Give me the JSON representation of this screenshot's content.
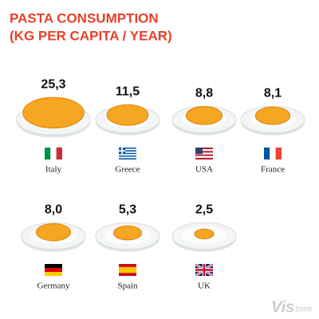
{
  "chart_data": {
    "type": "pictogram",
    "title": "PASTA CONSUMPTION",
    "subtitle": "(KG PER CAPITA / YEAR)",
    "categories": [
      "Italy",
      "Greece",
      "USA",
      "France",
      "Germany",
      "Spain",
      "UK"
    ],
    "values": [
      25.3,
      11.5,
      8.8,
      8.1,
      8.0,
      5.3,
      2.5
    ],
    "value_labels": [
      "25,3",
      "11,5",
      "8,8",
      "8,1",
      "8,0",
      "5,3",
      "2,5"
    ],
    "color": "#f5a623",
    "title_color": "#e8402a",
    "watermark": [
      "Vis",
      "zone"
    ]
  }
}
